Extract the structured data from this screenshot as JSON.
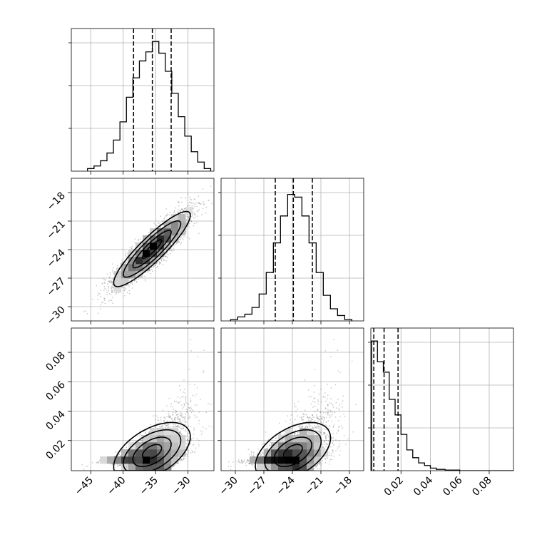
{
  "chart_data": {
    "type": "corner",
    "parameters": [
      {
        "xlim": [
          -48,
          -26
        ],
        "xticks": [
          -45,
          -40,
          -35,
          -30
        ],
        "xtick_labels": [
          "−45",
          "−40",
          "−35",
          "−30"
        ]
      },
      {
        "xlim": [
          -31.5,
          -16.5
        ],
        "xticks": [
          -30,
          -27,
          -24,
          -21,
          -18
        ],
        "xtick_labels": [
          "−30",
          "−27",
          "−24",
          "−21",
          "−18"
        ],
        "yticks": [
          -18,
          -21,
          -24,
          -27,
          -30
        ],
        "ytick_labels": [
          "−18",
          "−21",
          "−24",
          "−27",
          "−30"
        ]
      },
      {
        "xlim": [
          -0.0005,
          0.0965
        ],
        "xticks": [
          0.02,
          0.04,
          0.06,
          0.08
        ],
        "xtick_labels": [
          "0.02",
          "0.04",
          "0.06",
          "0.08"
        ],
        "yticks": [
          0.02,
          0.04,
          0.06,
          0.08
        ],
        "ytick_labels": [
          "0.02",
          "0.04",
          "0.06",
          "0.08"
        ]
      }
    ],
    "histograms": [
      {
        "quantile_lines": [
          -38.4,
          -35.5,
          -32.6
        ],
        "bins": [
          {
            "x0": -45.5,
            "x1": -44.5,
            "count": 2
          },
          {
            "x0": -44.5,
            "x1": -43.5,
            "count": 4
          },
          {
            "x0": -43.5,
            "x1": -42.5,
            "count": 8
          },
          {
            "x0": -42.5,
            "x1": -41.5,
            "count": 14
          },
          {
            "x0": -41.5,
            "x1": -40.5,
            "count": 24
          },
          {
            "x0": -40.5,
            "x1": -39.5,
            "count": 38
          },
          {
            "x0": -39.5,
            "x1": -38.5,
            "count": 57
          },
          {
            "x0": -38.5,
            "x1": -37.5,
            "count": 72
          },
          {
            "x0": -37.5,
            "x1": -36.5,
            "count": 85
          },
          {
            "x0": -36.5,
            "x1": -35.5,
            "count": 92
          },
          {
            "x0": -35.5,
            "x1": -34.5,
            "count": 100
          },
          {
            "x0": -34.5,
            "x1": -33.5,
            "count": 91
          },
          {
            "x0": -33.5,
            "x1": -32.5,
            "count": 77
          },
          {
            "x0": -32.5,
            "x1": -31.5,
            "count": 60
          },
          {
            "x0": -31.5,
            "x1": -30.5,
            "count": 42
          },
          {
            "x0": -30.5,
            "x1": -29.5,
            "count": 27
          },
          {
            "x0": -29.5,
            "x1": -28.5,
            "count": 15
          },
          {
            "x0": -28.5,
            "x1": -27.5,
            "count": 7
          },
          {
            "x0": -27.5,
            "x1": -26.5,
            "count": 2
          }
        ],
        "ymax": 110
      },
      {
        "quantile_lines": [
          -25.8,
          -23.9,
          -21.9
        ],
        "bins": [
          {
            "x0": -30.5,
            "x1": -29.75,
            "count": 1
          },
          {
            "x0": -29.75,
            "x1": -29.0,
            "count": 3
          },
          {
            "x0": -29.0,
            "x1": -28.25,
            "count": 5
          },
          {
            "x0": -28.25,
            "x1": -27.5,
            "count": 10
          },
          {
            "x0": -27.5,
            "x1": -26.75,
            "count": 20
          },
          {
            "x0": -26.75,
            "x1": -26.0,
            "count": 36
          },
          {
            "x0": -26.0,
            "x1": -25.25,
            "count": 58
          },
          {
            "x0": -25.25,
            "x1": -24.5,
            "count": 78
          },
          {
            "x0": -24.5,
            "x1": -23.75,
            "count": 94
          },
          {
            "x0": -23.75,
            "x1": -23.0,
            "count": 92
          },
          {
            "x0": -23.0,
            "x1": -22.25,
            "count": 78
          },
          {
            "x0": -22.25,
            "x1": -21.5,
            "count": 58
          },
          {
            "x0": -21.5,
            "x1": -20.75,
            "count": 36
          },
          {
            "x0": -20.75,
            "x1": -20.0,
            "count": 19
          },
          {
            "x0": -20.0,
            "x1": -19.25,
            "count": 9
          },
          {
            "x0": -19.25,
            "x1": -18.5,
            "count": 4
          },
          {
            "x0": -18.5,
            "x1": -17.75,
            "count": 1
          }
        ],
        "ymax": 106
      },
      {
        "quantile_lines": [
          0.0015,
          0.0085,
          0.018
        ],
        "bins": [
          {
            "x0": 0.0,
            "x1": 0.004,
            "count": 100
          },
          {
            "x0": 0.004,
            "x1": 0.008,
            "count": 84
          },
          {
            "x0": 0.008,
            "x1": 0.012,
            "count": 76
          },
          {
            "x0": 0.012,
            "x1": 0.016,
            "count": 55
          },
          {
            "x0": 0.016,
            "x1": 0.02,
            "count": 43
          },
          {
            "x0": 0.02,
            "x1": 0.024,
            "count": 28
          },
          {
            "x0": 0.024,
            "x1": 0.028,
            "count": 16
          },
          {
            "x0": 0.028,
            "x1": 0.032,
            "count": 10
          },
          {
            "x0": 0.032,
            "x1": 0.036,
            "count": 6
          },
          {
            "x0": 0.036,
            "x1": 0.04,
            "count": 4
          },
          {
            "x0": 0.04,
            "x1": 0.044,
            "count": 2
          },
          {
            "x0": 0.044,
            "x1": 0.05,
            "count": 1
          },
          {
            "x0": 0.05,
            "x1": 0.06,
            "count": 0.5
          },
          {
            "x0": 0.06,
            "x1": 0.097,
            "count": 0
          }
        ],
        "ymax": 110
      }
    ],
    "grid": true,
    "colors": {
      "line": "#000000",
      "scatter": "#555555",
      "grid": "#b0b0b0"
    }
  }
}
